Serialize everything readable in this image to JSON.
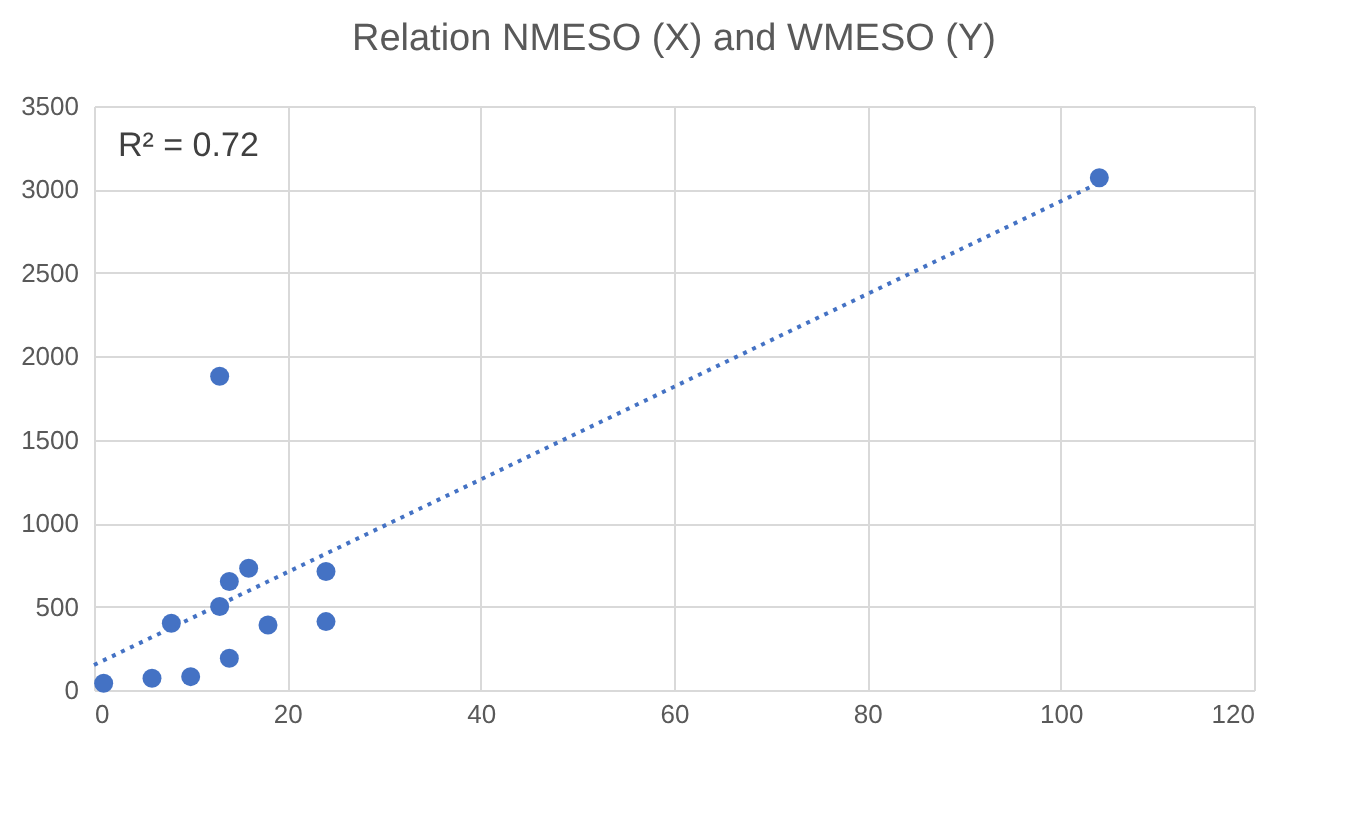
{
  "chart_data": {
    "type": "scatter",
    "title": "Relation NMESO (X) and WMESO (Y)",
    "annotations": [
      "R² = 0.72"
    ],
    "series": [
      {
        "color": "#4472c4",
        "marker": "circle",
        "x": [
          1,
          6,
          10,
          14,
          8,
          13,
          18,
          24,
          14,
          16,
          24,
          13,
          104
        ],
        "values": [
          40,
          70,
          80,
          190,
          400,
          500,
          390,
          410,
          650,
          730,
          710,
          1880,
          3070
        ]
      },
      {
        "type": "line",
        "color": "#4472c4",
        "line_style": "dotted",
        "x": [
          0,
          104
        ],
        "values": [
          150,
          3040
        ]
      }
    ],
    "xlim": [
      0,
      120
    ],
    "xticks": [
      0,
      20,
      40,
      60,
      80,
      100,
      120
    ],
    "ylim": [
      0,
      3500
    ],
    "yticks": [
      0,
      500,
      1000,
      1500,
      2000,
      2500,
      3000,
      3500
    ],
    "grid": true
  }
}
